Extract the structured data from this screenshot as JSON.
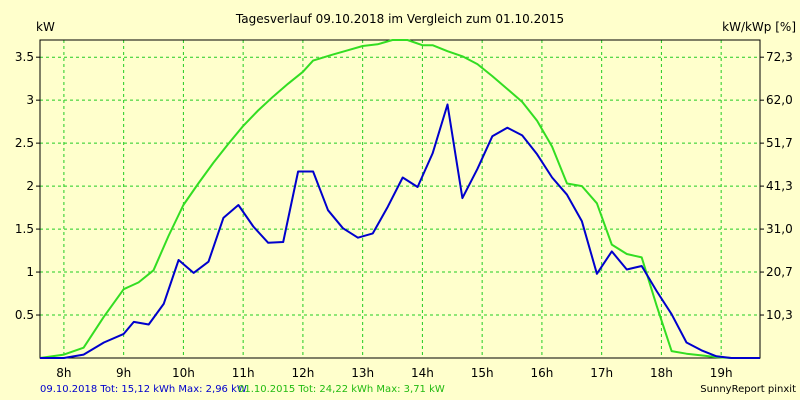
{
  "chart_data": {
    "type": "line",
    "title": "Tagesverlauf 09.10.2018 im Vergleich zum 01.10.2015",
    "y_left_label": "kW",
    "y_right_label": "kW/kWp [%]",
    "x_ticks": [
      "8h",
      "9h",
      "10h",
      "11h",
      "12h",
      "13h",
      "14h",
      "15h",
      "16h",
      "17h",
      "18h",
      "19h"
    ],
    "xlim": [
      7.6,
      19.65
    ],
    "ylim": [
      0,
      3.7
    ],
    "y_left_ticks": [
      0.5,
      1,
      1.5,
      2,
      2.5,
      3,
      3.5
    ],
    "y_left_tick_labels": [
      "0.5",
      "1",
      "1.5",
      "2",
      "2.5",
      "3",
      "3.5"
    ],
    "y_right_ticks": [
      0.5,
      1,
      1.5,
      2,
      2.5,
      3,
      3.5
    ],
    "y_right_tick_labels": [
      "10,3",
      "20,7",
      "31,0",
      "41,3",
      "51,7",
      "62,0",
      "72,3"
    ],
    "grid": true,
    "series": [
      {
        "name": "09.10.2018",
        "color": "#0000CC",
        "points": [
          [
            7.6,
            0
          ],
          [
            8.0,
            0
          ],
          [
            8.33,
            0.04
          ],
          [
            8.67,
            0.18
          ],
          [
            9.0,
            0.28
          ],
          [
            9.17,
            0.42
          ],
          [
            9.42,
            0.39
          ],
          [
            9.67,
            0.63
          ],
          [
            9.92,
            1.14
          ],
          [
            10.17,
            0.99
          ],
          [
            10.42,
            1.12
          ],
          [
            10.67,
            1.63
          ],
          [
            10.92,
            1.78
          ],
          [
            11.17,
            1.53
          ],
          [
            11.42,
            1.34
          ],
          [
            11.67,
            1.35
          ],
          [
            11.92,
            2.17
          ],
          [
            12.17,
            2.17
          ],
          [
            12.42,
            1.72
          ],
          [
            12.67,
            1.51
          ],
          [
            12.92,
            1.4
          ],
          [
            13.17,
            1.45
          ],
          [
            13.42,
            1.76
          ],
          [
            13.67,
            2.1
          ],
          [
            13.92,
            1.99
          ],
          [
            14.17,
            2.38
          ],
          [
            14.42,
            2.95
          ],
          [
            14.67,
            1.86
          ],
          [
            14.92,
            2.2
          ],
          [
            15.17,
            2.58
          ],
          [
            15.42,
            2.68
          ],
          [
            15.67,
            2.59
          ],
          [
            15.92,
            2.37
          ],
          [
            16.17,
            2.1
          ],
          [
            16.42,
            1.9
          ],
          [
            16.67,
            1.59
          ],
          [
            16.92,
            0.98
          ],
          [
            17.17,
            1.24
          ],
          [
            17.42,
            1.03
          ],
          [
            17.67,
            1.07
          ],
          [
            17.92,
            0.78
          ],
          [
            18.17,
            0.51
          ],
          [
            18.42,
            0.18
          ],
          [
            18.67,
            0.09
          ],
          [
            18.92,
            0.02
          ],
          [
            19.17,
            0
          ],
          [
            19.65,
            0
          ]
        ]
      },
      {
        "name": "01.10.2015",
        "color": "#33DD22",
        "points": [
          [
            7.6,
            0
          ],
          [
            8.0,
            0.04
          ],
          [
            8.33,
            0.12
          ],
          [
            8.67,
            0.48
          ],
          [
            9.0,
            0.8
          ],
          [
            9.25,
            0.88
          ],
          [
            9.5,
            1.02
          ],
          [
            9.75,
            1.42
          ],
          [
            10.0,
            1.78
          ],
          [
            10.25,
            2.03
          ],
          [
            10.5,
            2.27
          ],
          [
            10.75,
            2.49
          ],
          [
            11.0,
            2.7
          ],
          [
            11.25,
            2.88
          ],
          [
            11.5,
            3.04
          ],
          [
            11.75,
            3.19
          ],
          [
            12.0,
            3.33
          ],
          [
            12.17,
            3.46
          ],
          [
            12.5,
            3.53
          ],
          [
            12.75,
            3.58
          ],
          [
            13.0,
            3.63
          ],
          [
            13.25,
            3.65
          ],
          [
            13.5,
            3.7
          ],
          [
            13.75,
            3.7
          ],
          [
            14.0,
            3.64
          ],
          [
            14.17,
            3.64
          ],
          [
            14.42,
            3.57
          ],
          [
            14.67,
            3.51
          ],
          [
            14.92,
            3.42
          ],
          [
            15.17,
            3.28
          ],
          [
            15.42,
            3.13
          ],
          [
            15.67,
            2.98
          ],
          [
            15.92,
            2.76
          ],
          [
            16.17,
            2.46
          ],
          [
            16.42,
            2.03
          ],
          [
            16.67,
            2.0
          ],
          [
            16.92,
            1.8
          ],
          [
            17.17,
            1.32
          ],
          [
            17.42,
            1.21
          ],
          [
            17.67,
            1.17
          ],
          [
            17.92,
            0.61
          ],
          [
            18.17,
            0.08
          ],
          [
            18.42,
            0.05
          ],
          [
            18.67,
            0.03
          ],
          [
            18.92,
            0.01
          ],
          [
            19.17,
            0
          ],
          [
            19.65,
            0
          ]
        ]
      }
    ],
    "footer_series1": "09.10.2018 Tot: 15,12 kWh Max: 2,96 kW",
    "footer_series2": "01.10.2015 Tot: 24,22 kWh Max: 3,71 kW",
    "footer_right": "SunnyReport pinxit"
  }
}
